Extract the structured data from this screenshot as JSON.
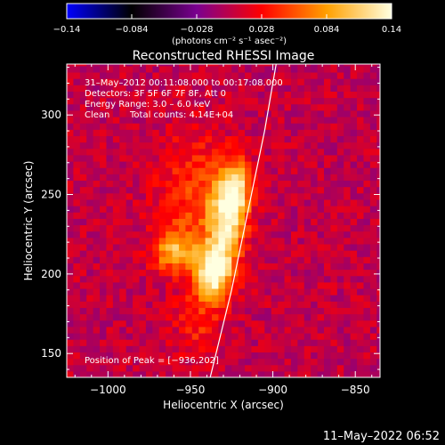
{
  "chart_data": {
    "type": "heatmap",
    "title": "Reconstructed RHESSI Image",
    "xlabel": "Heliocentric X (arcsec)",
    "ylabel": "Heliocentric Y (arcsec)",
    "xlim": [
      -1025,
      -835
    ],
    "ylim": [
      135,
      332
    ],
    "xticks": [
      {
        "value": -1000,
        "label": "−1000"
      },
      {
        "value": -950,
        "label": "−950"
      },
      {
        "value": -900,
        "label": "−900"
      },
      {
        "value": -850,
        "label": "−850"
      }
    ],
    "yticks": [
      {
        "value": 150,
        "label": "150"
      },
      {
        "value": 200,
        "label": "200"
      },
      {
        "value": 250,
        "label": "250"
      },
      {
        "value": 300,
        "label": "300"
      }
    ],
    "annotations": {
      "time_range": "31–May–2012 00:11:08.000 to 00:17:08.000",
      "detectors": "Detectors: 3F 5F 6F 7F 8F, Att 0",
      "energy": "Energy Range: 3.0 – 6.0 keV",
      "method": "Clean",
      "counts": "Total counts: 4.14E+04",
      "peak": "Position of Peak = [−936,202]"
    },
    "peak": {
      "x": -936,
      "y": 202
    },
    "sources": [
      {
        "x": -936,
        "y": 202,
        "sx": 8,
        "sy": 12,
        "amp": 0.14
      },
      {
        "x": -928,
        "y": 235,
        "sx": 8,
        "sy": 18,
        "amp": 0.11
      },
      {
        "x": -922,
        "y": 255,
        "sx": 6,
        "sy": 12,
        "amp": 0.09
      },
      {
        "x": -960,
        "y": 215,
        "sx": 9,
        "sy": 9,
        "amp": 0.085
      },
      {
        "x": -948,
        "y": 250,
        "sx": 16,
        "sy": 28,
        "amp": 0.045
      },
      {
        "x": -945,
        "y": 170,
        "sx": 10,
        "sy": 16,
        "amp": 0.035
      }
    ],
    "limb": [
      {
        "x": -938,
        "y": 135
      },
      {
        "x": -925,
        "y": 190
      },
      {
        "x": -915,
        "y": 240
      },
      {
        "x": -905,
        "y": 290
      },
      {
        "x": -898,
        "y": 332
      }
    ],
    "colorbar": {
      "range": [
        -0.14,
        0.14
      ],
      "ticks": [
        {
          "value": -0.14,
          "label": "−0.14"
        },
        {
          "value": -0.084,
          "label": "−0.084"
        },
        {
          "value": -0.028,
          "label": "−0.028"
        },
        {
          "value": 0.028,
          "label": "0.028"
        },
        {
          "value": 0.084,
          "label": "0.084"
        },
        {
          "value": 0.14,
          "label": "0.14"
        }
      ],
      "unit_label": "(photons cm⁻² s⁻¹ asec⁻²)",
      "colors": [
        "#0000ff",
        "#000000",
        "#7a0090",
        "#ff0000",
        "#ffa000",
        "#ffffe0"
      ]
    }
  },
  "footer": {
    "date": "11–May–2022 06:52"
  }
}
